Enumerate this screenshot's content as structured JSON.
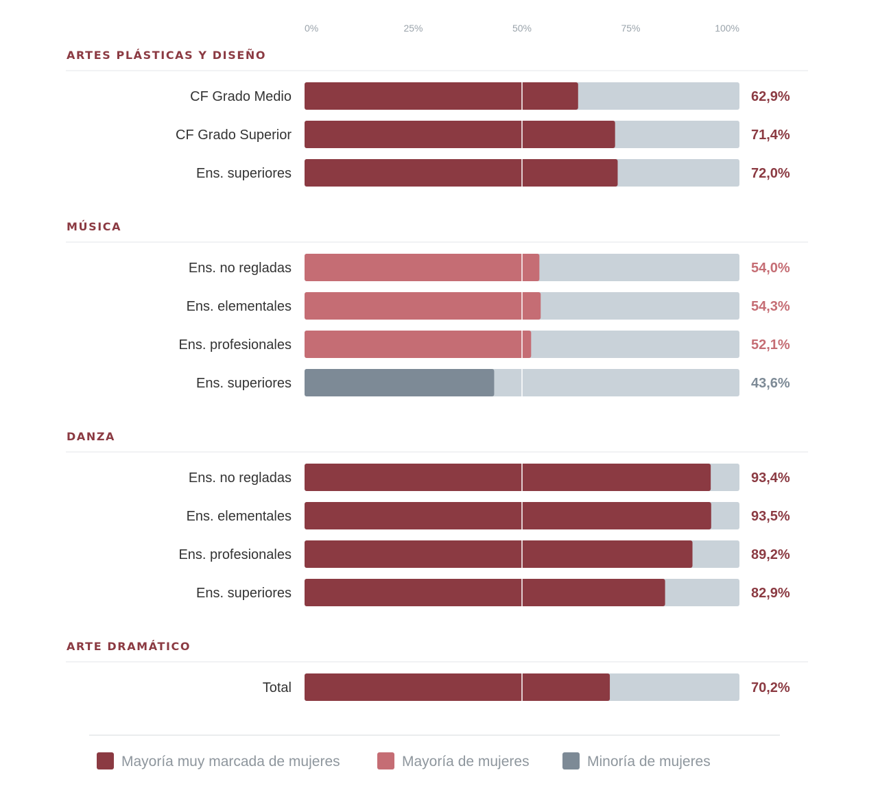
{
  "chart_data": {
    "type": "bar",
    "orientation": "horizontal",
    "stacked_background": true,
    "xlim": [
      0,
      100
    ],
    "x_ticks": [
      "0%",
      "25%",
      "50%",
      "75%",
      "100%"
    ],
    "reference_line": 50,
    "grid": false,
    "legend_placement": "bottom",
    "colors": {
      "very_marked": "#8b3a42",
      "majority": "#c56d74",
      "minority": "#7d8a96",
      "track": "#c9d2d9",
      "section_title": "#8b3a42",
      "rule": "#e3e6e9"
    },
    "legend": [
      {
        "key": "very_marked",
        "label": "Mayoría muy marcada de mujeres"
      },
      {
        "key": "majority",
        "label": "Mayoría de mujeres"
      },
      {
        "key": "minority",
        "label": "Minoría de mujeres"
      }
    ],
    "groups": [
      {
        "title": "ARTES PLÁSTICAS Y DISEÑO",
        "rows": [
          {
            "label": "CF Grado Medio",
            "value": 62.9,
            "display": "62,9%",
            "category": "very_marked"
          },
          {
            "label": "CF Grado Superior",
            "value": 71.4,
            "display": "71,4%",
            "category": "very_marked"
          },
          {
            "label": "Ens. superiores",
            "value": 72.0,
            "display": "72,0%",
            "category": "very_marked"
          }
        ]
      },
      {
        "title": "MÚSICA",
        "rows": [
          {
            "label": "Ens. no regladas",
            "value": 54.0,
            "display": "54,0%",
            "category": "majority"
          },
          {
            "label": "Ens. elementales",
            "value": 54.3,
            "display": "54,3%",
            "category": "majority"
          },
          {
            "label": "Ens. profesionales",
            "value": 52.1,
            "display": "52,1%",
            "category": "majority"
          },
          {
            "label": "Ens. superiores",
            "value": 43.6,
            "display": "43,6%",
            "category": "minority"
          }
        ]
      },
      {
        "title": "DANZA",
        "rows": [
          {
            "label": "Ens. no regladas",
            "value": 93.4,
            "display": "93,4%",
            "category": "very_marked"
          },
          {
            "label": "Ens. elementales",
            "value": 93.5,
            "display": "93,5%",
            "category": "very_marked"
          },
          {
            "label": "Ens. profesionales",
            "value": 89.2,
            "display": "89,2%",
            "category": "very_marked"
          },
          {
            "label": "Ens. superiores",
            "value": 82.9,
            "display": "82,9%",
            "category": "very_marked"
          }
        ]
      },
      {
        "title": "ARTE DRAMÁTICO",
        "rows": [
          {
            "label": "Total",
            "value": 70.2,
            "display": "70,2%",
            "category": "very_marked"
          }
        ]
      }
    ]
  }
}
